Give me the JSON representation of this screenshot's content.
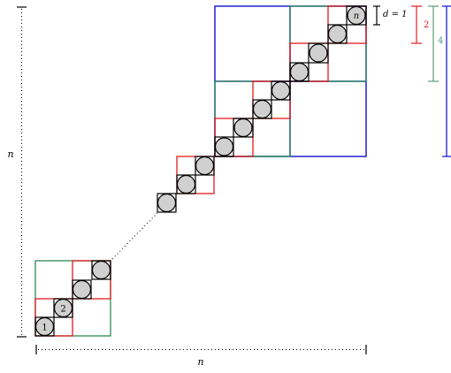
{
  "labels": {
    "n_left": "n",
    "n_bottom": "n",
    "node_first": "1",
    "node_second": "2",
    "node_last": "n",
    "d_label": "d = 1",
    "brace_red": "2",
    "brace_green": "4"
  },
  "colors": {
    "grid_black": "#000000",
    "level_red": "#e41a1c",
    "level_green": "#2e8b57",
    "level_blue": "#1f1fd6",
    "node_fill": "#d0d0d0",
    "brace_green": "#5a9c7a"
  }
}
